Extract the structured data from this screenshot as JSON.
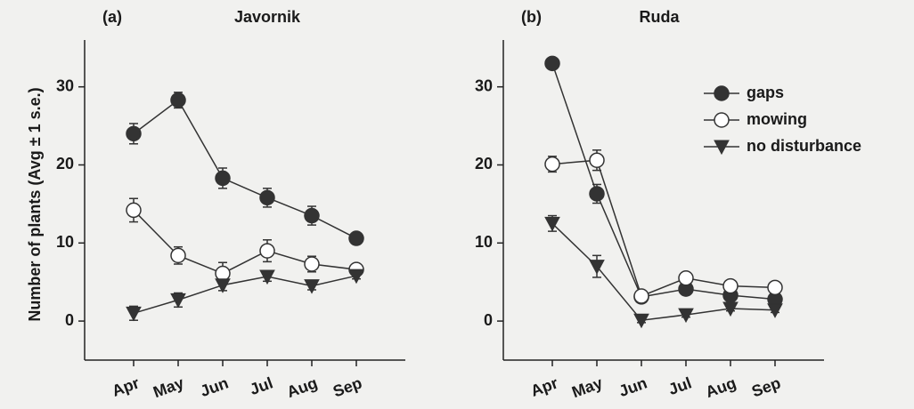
{
  "chart_data": [
    {
      "type": "line",
      "panel_label": "(a)",
      "title": "Javornik",
      "ylabel": "Number of plants (Avg ± 1 s.e.)",
      "categories": [
        "Apr",
        "May",
        "Jun",
        "Jul",
        "Aug",
        "Sep"
      ],
      "series": [
        {
          "marker": "circle-filled",
          "color": "#333333",
          "values": [
            24.0,
            28.3,
            18.3,
            15.8,
            13.5,
            10.6
          ],
          "errors": [
            1.3,
            1.0,
            1.3,
            1.2,
            1.2,
            0.5
          ]
        },
        {
          "marker": "circle-open",
          "color": "#333333",
          "values": [
            14.2,
            8.4,
            6.1,
            9.0,
            7.3,
            6.6
          ],
          "errors": [
            1.5,
            1.1,
            1.4,
            1.4,
            1.0,
            0.5
          ]
        },
        {
          "marker": "triangle-down",
          "color": "#333333",
          "values": [
            1.0,
            2.7,
            4.6,
            5.7,
            4.5,
            5.8
          ],
          "errors": [
            0.9,
            0.9,
            0.7,
            0.6,
            0.5,
            0.4
          ]
        }
      ],
      "ylim": [
        -5,
        36
      ],
      "yticks": [
        0,
        10,
        20,
        30
      ]
    },
    {
      "type": "line",
      "panel_label": "(b)",
      "title": "Ruda",
      "categories": [
        "Apr",
        "May",
        "Jun",
        "Jul",
        "Aug",
        "Sep"
      ],
      "series": [
        {
          "name": "gaps",
          "marker": "circle-filled",
          "color": "#333333",
          "values": [
            33.0,
            16.3,
            3.1,
            4.1,
            3.3,
            2.8
          ],
          "errors": [
            0.5,
            1.2,
            0.5,
            0.5,
            0.5,
            0.4
          ]
        },
        {
          "name": "mowing",
          "marker": "circle-open",
          "color": "#333333",
          "values": [
            20.1,
            20.6,
            3.2,
            5.5,
            4.5,
            4.3
          ],
          "errors": [
            1.0,
            1.3,
            0.7,
            0.6,
            0.5,
            0.5
          ]
        },
        {
          "name": "no disturbance",
          "marker": "triangle-down",
          "color": "#333333",
          "values": [
            12.5,
            7.0,
            0.1,
            0.8,
            1.6,
            1.4
          ],
          "errors": [
            1.0,
            1.4,
            0.3,
            0.3,
            0.3,
            0.3
          ]
        }
      ],
      "ylim": [
        -5,
        36
      ],
      "yticks": [
        0,
        10,
        20,
        30
      ],
      "legend": "upper right"
    }
  ]
}
